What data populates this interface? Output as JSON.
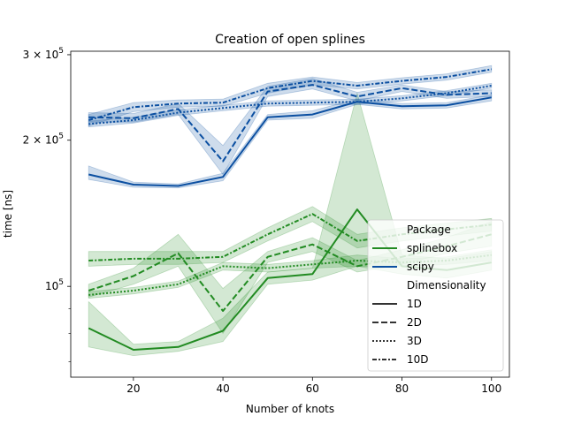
{
  "chart_data": {
    "type": "line",
    "title": "Creation of open splines",
    "xlabel": "Number of knots",
    "ylabel": "time [ns]",
    "yscale": "log",
    "xlim": [
      6,
      104
    ],
    "ylim": [
      65000,
      305000
    ],
    "x_ticks": [
      20,
      40,
      60,
      80,
      100
    ],
    "y_ticks": [
      {
        "value": 100000,
        "label": "10",
        "exp": "5"
      },
      {
        "value": 200000,
        "label": "2 × 10",
        "exp": "5"
      },
      {
        "value": 300000,
        "label": "3 × 10",
        "exp": "5"
      }
    ],
    "y_minor_ticks": [
      70000,
      80000,
      90000
    ],
    "colors": {
      "splinebox": "#228b22",
      "scipy": "#0b4fa1"
    },
    "x": [
      10,
      20,
      30,
      40,
      50,
      60,
      70,
      80,
      90,
      100
    ],
    "series": [
      {
        "name": "splinebox",
        "dim": "1D",
        "values": [
          82000,
          74000,
          75000,
          81000,
          104000,
          106000,
          144000,
          110000,
          108000,
          112000
        ],
        "lower": [
          75000,
          72000,
          73500,
          77000,
          101000,
          103000,
          110000,
          106000,
          104000,
          108000
        ],
        "upper": [
          93000,
          76000,
          77000,
          86000,
          107000,
          109000,
          250000,
          116000,
          114000,
          118000
        ]
      },
      {
        "name": "splinebox",
        "dim": "2D",
        "values": [
          98000,
          105000,
          117000,
          89000,
          115000,
          122000,
          110000,
          115000,
          121000,
          128000
        ],
        "lower": [
          95000,
          101000,
          110000,
          80000,
          112000,
          118000,
          107000,
          111000,
          117000,
          121000
        ],
        "upper": [
          101000,
          109000,
          128000,
          99000,
          118000,
          126000,
          113000,
          119000,
          126000,
          136000
        ]
      },
      {
        "name": "splinebox",
        "dim": "3D",
        "values": [
          96000,
          98000,
          101000,
          110000,
          109000,
          111000,
          113000,
          112000,
          113000,
          116000
        ],
        "lower": [
          94500,
          96500,
          99500,
          108000,
          107000,
          109000,
          110000,
          110000,
          111000,
          113000
        ],
        "upper": [
          97500,
          99500,
          102500,
          112000,
          111000,
          113000,
          116000,
          114000,
          115000,
          119000
        ]
      },
      {
        "name": "splinebox",
        "dim": "10D",
        "values": [
          113000,
          114000,
          114000,
          115000,
          128000,
          141000,
          124000,
          128000,
          131000,
          134000
        ],
        "lower": [
          110000,
          111000,
          111000,
          112000,
          124000,
          136000,
          120000,
          124000,
          127000,
          130000
        ],
        "upper": [
          118000,
          118000,
          118000,
          118000,
          132000,
          146000,
          128000,
          132000,
          135000,
          138000
        ]
      },
      {
        "name": "scipy",
        "dim": "1D",
        "values": [
          170000,
          162000,
          161000,
          168000,
          223000,
          226000,
          240000,
          235000,
          236000,
          245000
        ],
        "lower": [
          166000,
          160000,
          159500,
          165000,
          220000,
          222000,
          237000,
          232000,
          233000,
          241000
        ],
        "upper": [
          177000,
          164000,
          162500,
          171000,
          226000,
          230000,
          243000,
          238000,
          239000,
          248000
        ]
      },
      {
        "name": "scipy",
        "dim": "2D",
        "values": [
          223000,
          222000,
          232000,
          181000,
          252000,
          260000,
          246000,
          256000,
          248000,
          250000
        ],
        "lower": [
          218000,
          218000,
          226000,
          170000,
          246000,
          255000,
          241000,
          252000,
          244000,
          246000
        ],
        "upper": [
          228000,
          227000,
          238000,
          195000,
          258000,
          268000,
          251000,
          260000,
          252000,
          254000
        ]
      },
      {
        "name": "scipy",
        "dim": "3D",
        "values": [
          216000,
          220000,
          228000,
          233000,
          238000,
          239000,
          240000,
          244000,
          250000,
          259000
        ],
        "lower": [
          213000,
          217000,
          225000,
          230000,
          235000,
          236000,
          237000,
          241000,
          247000,
          256000
        ],
        "upper": [
          219000,
          223000,
          231000,
          236000,
          241000,
          242000,
          243000,
          247000,
          253000,
          262000
        ]
      },
      {
        "name": "scipy",
        "dim": "10D",
        "values": [
          220000,
          234000,
          238000,
          239000,
          256000,
          265000,
          259000,
          265000,
          270000,
          280000
        ],
        "lower": [
          214000,
          229000,
          234000,
          235000,
          250000,
          260000,
          255000,
          261000,
          266000,
          276000
        ],
        "upper": [
          226000,
          239000,
          242000,
          243000,
          262000,
          270000,
          263000,
          269000,
          274000,
          285000
        ]
      }
    ],
    "legend": {
      "placement": "lower-right",
      "header_package": "Package",
      "packages": [
        "splinebox",
        "scipy"
      ],
      "header_dimensionality": "Dimensionality",
      "dims": [
        "1D",
        "2D",
        "3D",
        "10D"
      ]
    }
  }
}
